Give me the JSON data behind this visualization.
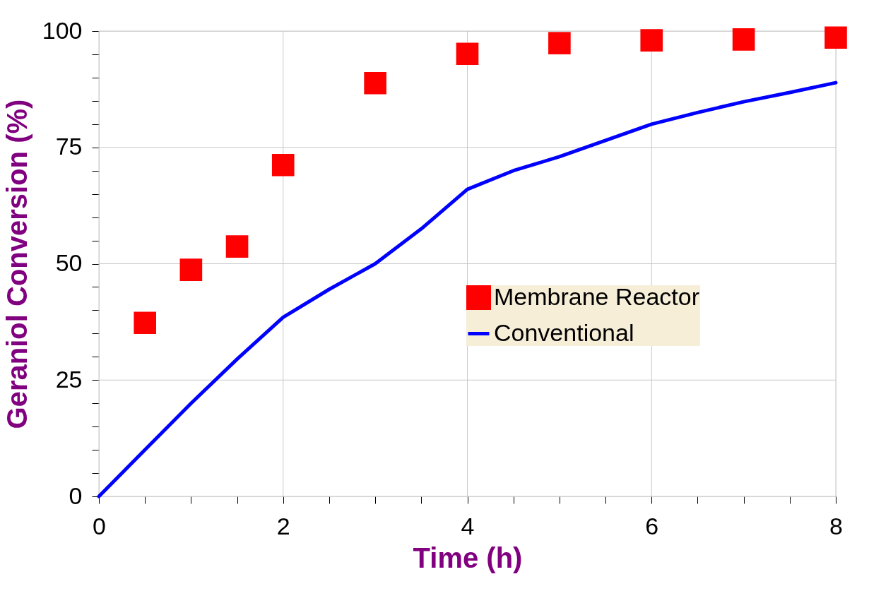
{
  "chart_data": {
    "type": "scatter",
    "xlabel": "Time (h)",
    "ylabel": "Geraniol Conversion (%)",
    "xlim": [
      0,
      8
    ],
    "ylim": [
      0,
      100
    ],
    "xticks": [
      0,
      {
        "value": 0.5,
        "label": null
      },
      {
        "value": 1,
        "label": null
      },
      {
        "value": 1.5,
        "label": null
      },
      2,
      {
        "value": 2.5,
        "label": null
      },
      {
        "value": 3,
        "label": null
      },
      {
        "value": 3.5,
        "label": null
      },
      4,
      {
        "value": 4.5,
        "label": null
      },
      {
        "value": 5,
        "label": null
      },
      {
        "value": 5.5,
        "label": null
      },
      6,
      {
        "value": 6.5,
        "label": null
      },
      {
        "value": 7,
        "label": null
      },
      {
        "value": 7.5,
        "label": null
      },
      8
    ],
    "yticks": [
      0,
      {
        "value": 5,
        "label": null
      },
      {
        "value": 10,
        "label": null
      },
      {
        "value": 15,
        "label": null
      },
      {
        "value": 20,
        "label": null
      },
      25,
      {
        "value": 30,
        "label": null
      },
      {
        "value": 35,
        "label": null
      },
      {
        "value": 40,
        "label": null
      },
      {
        "value": 45,
        "label": null
      },
      50,
      {
        "value": 55,
        "label": null
      },
      {
        "value": 60,
        "label": null
      },
      {
        "value": 65,
        "label": null
      },
      {
        "value": 70,
        "label": null
      },
      75,
      {
        "value": 80,
        "label": null
      },
      {
        "value": 85,
        "label": null
      },
      {
        "value": 90,
        "label": null
      },
      {
        "value": 95,
        "label": null
      },
      100
    ],
    "grid": true,
    "legend": "right",
    "series": [
      {
        "name": "Membrane Reactor",
        "marker": "square",
        "color": "#ff0000",
        "x": [
          0.5,
          1,
          1.5,
          2,
          3,
          4,
          5,
          6,
          7,
          8
        ],
        "values": [
          37.3,
          48.7,
          53.7,
          71.2,
          88.8,
          95.1,
          97.4,
          98.0,
          98.2,
          98.6
        ]
      },
      {
        "name": "Conventional",
        "type": "line",
        "marker": "none",
        "line_style": "solid",
        "color": "#0000ff",
        "x": [
          0,
          0.5,
          1,
          1.5,
          2,
          2.5,
          3,
          3.5,
          4,
          4.5,
          5,
          5.5,
          6,
          6.5,
          7,
          7.5,
          8
        ],
        "values": [
          0,
          10,
          20,
          29.5,
          38.5,
          44.5,
          50,
          57.5,
          66,
          70,
          73,
          76.5,
          80,
          82.5,
          84.8,
          86.8,
          88.9
        ]
      }
    ]
  }
}
